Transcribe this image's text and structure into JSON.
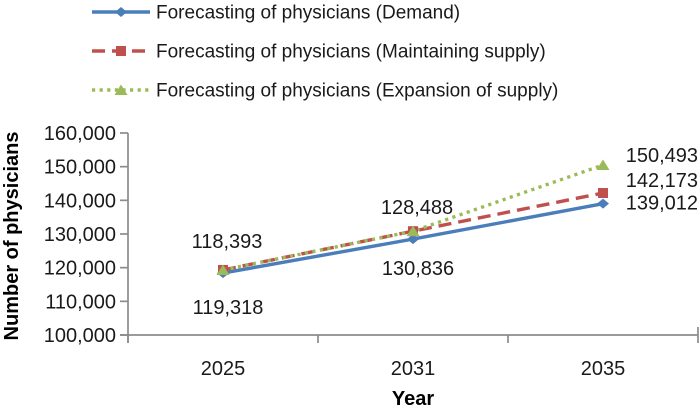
{
  "chart_data": {
    "type": "line",
    "title": "",
    "xlabel": "Year",
    "ylabel": "Number of physicians",
    "categories": [
      "2025",
      "2031",
      "2035"
    ],
    "ylim": [
      100000,
      160000
    ],
    "y_axis": {
      "step": 10000,
      "tick_labels": [
        "100,000",
        "110,000",
        "120,000",
        "130,000",
        "140,000",
        "150,000",
        "160,000"
      ]
    },
    "grid": false,
    "legend_position": "top-left",
    "axis_color": "#8c8c8c",
    "text_color": "#1a1a1a",
    "series": [
      {
        "id": "demand",
        "name": "Forecasting of physicians (Demand)",
        "color": "#4A7EBB",
        "marker": "diamond",
        "line_style": "solid",
        "values": [
          118393,
          128488,
          139012
        ],
        "data_labels": [
          {
            "index": 0,
            "text": "118,393",
            "position": "above"
          },
          {
            "index": 1,
            "text": "128,488",
            "position": "above"
          },
          {
            "index": 2,
            "text": "139,012",
            "position": "right",
            "dy": -1
          }
        ]
      },
      {
        "id": "maintaining-supply",
        "name": "Forecasting of physicians (Maintaining supply)",
        "color": "#C0504D",
        "marker": "square",
        "line_style": "dashed",
        "values": [
          119318,
          130836,
          142173
        ],
        "data_labels": [
          {
            "index": 0,
            "text": "119,318",
            "position": "below"
          },
          {
            "index": 1,
            "text": "130,836",
            "position": "below"
          },
          {
            "index": 2,
            "text": "142,173",
            "position": "right",
            "dy": -13
          }
        ]
      },
      {
        "id": "expansion-of-supply",
        "name": "Forecasting of physicians (Expansion of supply)",
        "color": "#9BBB59",
        "marker": "triangle",
        "line_style": "dotted",
        "values": [
          119318,
          130836,
          150493
        ],
        "data_labels": [
          {
            "index": 2,
            "text": "150,493",
            "position": "right",
            "dy": -10
          }
        ]
      }
    ]
  }
}
